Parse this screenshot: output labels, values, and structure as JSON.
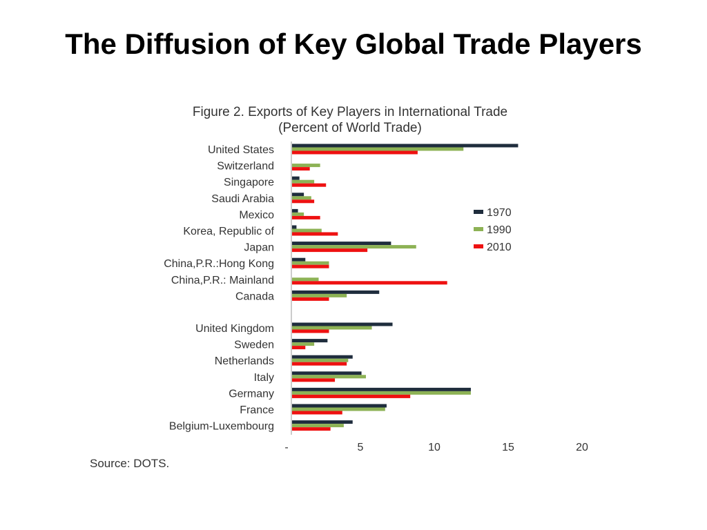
{
  "slide": {
    "title": "The Diffusion of Key Global Trade Players"
  },
  "chart_data": {
    "type": "bar",
    "orientation": "horizontal",
    "title": "Figure 2. Exports of Key Players in International Trade",
    "subtitle": "(Percent of World Trade)",
    "source": "Source: DOTS.",
    "categories": [
      "United States",
      "Switzerland",
      "Singapore",
      "Saudi Arabia",
      "Mexico",
      "Korea, Republic of",
      "Japan",
      "China,P.R.:Hong Kong",
      "China,P.R.: Mainland",
      "Canada",
      "United Kingdom",
      "Sweden",
      "Netherlands",
      "Italy",
      "Germany",
      "France",
      "Belgium-Luxembourg"
    ],
    "series": [
      {
        "name": "1970",
        "color": "#1f2d3d",
        "values": [
          15.3,
          0,
          0.5,
          0.8,
          0.4,
          0.3,
          6.7,
          0.9,
          0,
          5.9,
          6.8,
          2.4,
          4.1,
          4.7,
          12.1,
          6.4,
          4.1
        ]
      },
      {
        "name": "1990",
        "color": "#8db255",
        "values": [
          11.6,
          1.9,
          1.5,
          1.3,
          0.8,
          2.0,
          8.4,
          2.5,
          1.8,
          3.7,
          5.4,
          1.5,
          3.8,
          5.0,
          12.1,
          6.3,
          3.5
        ]
      },
      {
        "name": "2010",
        "color": "#ee1111",
        "values": [
          8.5,
          1.2,
          2.3,
          1.5,
          1.9,
          3.1,
          5.1,
          2.5,
          10.5,
          2.5,
          2.5,
          0.9,
          3.7,
          2.9,
          8.0,
          3.4,
          2.6
        ]
      }
    ],
    "xticks": [
      "-",
      "5",
      "10",
      "15",
      "20"
    ],
    "xlim": [
      0,
      20
    ],
    "grid": false,
    "legend_position": "right"
  }
}
